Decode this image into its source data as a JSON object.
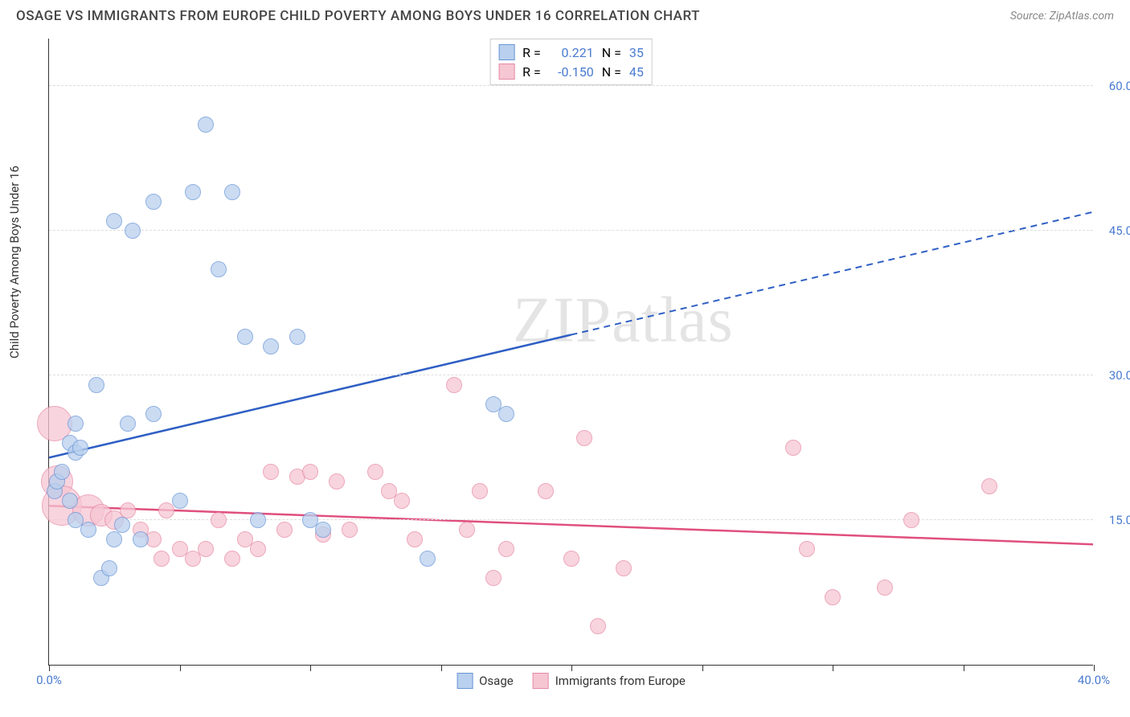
{
  "title": "OSAGE VS IMMIGRANTS FROM EUROPE CHILD POVERTY AMONG BOYS UNDER 16 CORRELATION CHART",
  "source": "Source: ZipAtlas.com",
  "watermark": "ZIPatlas",
  "y_axis_title": "Child Poverty Among Boys Under 16",
  "chart": {
    "type": "scatter",
    "xlim": [
      0,
      40
    ],
    "ylim": [
      0,
      65
    ],
    "x_ticks": [
      0,
      5,
      10,
      15,
      20,
      25,
      30,
      35,
      40
    ],
    "y_gridlines": [
      15,
      30,
      45,
      60
    ],
    "y_labels": [
      {
        "v": 15,
        "t": "15.0%",
        "color": "#4a7bd0"
      },
      {
        "v": 30,
        "t": "30.0%",
        "color": "#4a7bd0"
      },
      {
        "v": 45,
        "t": "45.0%",
        "color": "#4a7bd0"
      },
      {
        "v": 60,
        "t": "60.0%",
        "color": "#4a7bd0"
      }
    ],
    "x_labels": [
      {
        "v": 0,
        "t": "0.0%",
        "color": "#4a7bd0"
      },
      {
        "v": 40,
        "t": "40.0%",
        "color": "#4a7bd0"
      }
    ],
    "background_color": "#ffffff",
    "grid_color": "#dddddd"
  },
  "series": {
    "osage": {
      "label": "Osage",
      "fill": "#b9d0ee",
      "stroke": "#6a96d6",
      "trend_color": "#2f5fc4",
      "R": "0.221",
      "N": "35",
      "trend": {
        "x1": 0,
        "y1": 21.5,
        "x2": 40,
        "y2": 47,
        "solid_until_x": 20
      },
      "points": [
        {
          "x": 0.2,
          "y": 18,
          "r": 10
        },
        {
          "x": 0.3,
          "y": 19,
          "r": 10
        },
        {
          "x": 0.5,
          "y": 20,
          "r": 10
        },
        {
          "x": 0.8,
          "y": 23,
          "r": 10
        },
        {
          "x": 1.0,
          "y": 22,
          "r": 10
        },
        {
          "x": 1.2,
          "y": 22.5,
          "r": 10
        },
        {
          "x": 0.8,
          "y": 17,
          "r": 10
        },
        {
          "x": 1.0,
          "y": 15,
          "r": 10
        },
        {
          "x": 1.5,
          "y": 14,
          "r": 10
        },
        {
          "x": 2.0,
          "y": 9,
          "r": 10
        },
        {
          "x": 2.3,
          "y": 10,
          "r": 10
        },
        {
          "x": 2.5,
          "y": 13,
          "r": 10
        },
        {
          "x": 2.8,
          "y": 14.5,
          "r": 10
        },
        {
          "x": 3.5,
          "y": 13,
          "r": 10
        },
        {
          "x": 1.8,
          "y": 29,
          "r": 10
        },
        {
          "x": 2.5,
          "y": 46,
          "r": 10
        },
        {
          "x": 3.0,
          "y": 25,
          "r": 10
        },
        {
          "x": 3.2,
          "y": 45,
          "r": 10
        },
        {
          "x": 4.0,
          "y": 48,
          "r": 10
        },
        {
          "x": 4.0,
          "y": 26,
          "r": 10
        },
        {
          "x": 5.5,
          "y": 49,
          "r": 10
        },
        {
          "x": 6.0,
          "y": 56,
          "r": 10
        },
        {
          "x": 6.5,
          "y": 41,
          "r": 10
        },
        {
          "x": 7.0,
          "y": 49,
          "r": 10
        },
        {
          "x": 7.5,
          "y": 34,
          "r": 10
        },
        {
          "x": 8.0,
          "y": 15,
          "r": 10
        },
        {
          "x": 8.5,
          "y": 33,
          "r": 10
        },
        {
          "x": 9.5,
          "y": 34,
          "r": 10
        },
        {
          "x": 10.0,
          "y": 15,
          "r": 10
        },
        {
          "x": 10.5,
          "y": 14,
          "r": 10
        },
        {
          "x": 14.5,
          "y": 11,
          "r": 10
        },
        {
          "x": 17.0,
          "y": 27,
          "r": 10
        },
        {
          "x": 17.5,
          "y": 26,
          "r": 10
        },
        {
          "x": 5.0,
          "y": 17,
          "r": 10
        },
        {
          "x": 1.0,
          "y": 25,
          "r": 10
        }
      ]
    },
    "europe": {
      "label": "Immigrants from Europe",
      "fill": "#f6c6d3",
      "stroke": "#e68aa5",
      "trend_color": "#e04f7d",
      "R": "-0.150",
      "N": "45",
      "trend": {
        "x1": 0,
        "y1": 16.5,
        "x2": 40,
        "y2": 12.5,
        "solid_until_x": 40
      },
      "points": [
        {
          "x": 0.2,
          "y": 25,
          "r": 22
        },
        {
          "x": 0.3,
          "y": 19,
          "r": 20
        },
        {
          "x": 0.5,
          "y": 16.5,
          "r": 25
        },
        {
          "x": 1.5,
          "y": 16,
          "r": 20
        },
        {
          "x": 2.0,
          "y": 15.5,
          "r": 14
        },
        {
          "x": 2.5,
          "y": 15,
          "r": 12
        },
        {
          "x": 3.0,
          "y": 16,
          "r": 10
        },
        {
          "x": 3.5,
          "y": 14,
          "r": 10
        },
        {
          "x": 4.0,
          "y": 13,
          "r": 10
        },
        {
          "x": 4.3,
          "y": 11,
          "r": 10
        },
        {
          "x": 4.5,
          "y": 16,
          "r": 10
        },
        {
          "x": 5.0,
          "y": 12,
          "r": 10
        },
        {
          "x": 5.5,
          "y": 11,
          "r": 10
        },
        {
          "x": 6.0,
          "y": 12,
          "r": 10
        },
        {
          "x": 6.5,
          "y": 15,
          "r": 10
        },
        {
          "x": 7.0,
          "y": 11,
          "r": 10
        },
        {
          "x": 7.5,
          "y": 13,
          "r": 10
        },
        {
          "x": 8.0,
          "y": 12,
          "r": 10
        },
        {
          "x": 8.5,
          "y": 20,
          "r": 10
        },
        {
          "x": 9.0,
          "y": 14,
          "r": 10
        },
        {
          "x": 9.5,
          "y": 19.5,
          "r": 10
        },
        {
          "x": 10.0,
          "y": 20,
          "r": 10
        },
        {
          "x": 10.5,
          "y": 13.5,
          "r": 10
        },
        {
          "x": 11.0,
          "y": 19,
          "r": 10
        },
        {
          "x": 11.5,
          "y": 14,
          "r": 10
        },
        {
          "x": 12.5,
          "y": 20,
          "r": 10
        },
        {
          "x": 13.0,
          "y": 18,
          "r": 10
        },
        {
          "x": 13.5,
          "y": 17,
          "r": 10
        },
        {
          "x": 14.0,
          "y": 13,
          "r": 10
        },
        {
          "x": 15.5,
          "y": 29,
          "r": 10
        },
        {
          "x": 16.0,
          "y": 14,
          "r": 10
        },
        {
          "x": 16.5,
          "y": 18,
          "r": 10
        },
        {
          "x": 17.0,
          "y": 9,
          "r": 10
        },
        {
          "x": 17.5,
          "y": 12,
          "r": 10
        },
        {
          "x": 19.0,
          "y": 18,
          "r": 10
        },
        {
          "x": 20.0,
          "y": 11,
          "r": 10
        },
        {
          "x": 20.5,
          "y": 23.5,
          "r": 10
        },
        {
          "x": 21.0,
          "y": 4,
          "r": 10
        },
        {
          "x": 22.0,
          "y": 10,
          "r": 10
        },
        {
          "x": 28.5,
          "y": 22.5,
          "r": 10
        },
        {
          "x": 29.0,
          "y": 12,
          "r": 10
        },
        {
          "x": 30.0,
          "y": 7,
          "r": 10
        },
        {
          "x": 32.0,
          "y": 8,
          "r": 10
        },
        {
          "x": 33.0,
          "y": 15,
          "r": 10
        },
        {
          "x": 36.0,
          "y": 18.5,
          "r": 10
        }
      ]
    }
  },
  "stats_labels": {
    "R": "R =",
    "N": "N ="
  },
  "text_color_value": "#4a7bd0"
}
